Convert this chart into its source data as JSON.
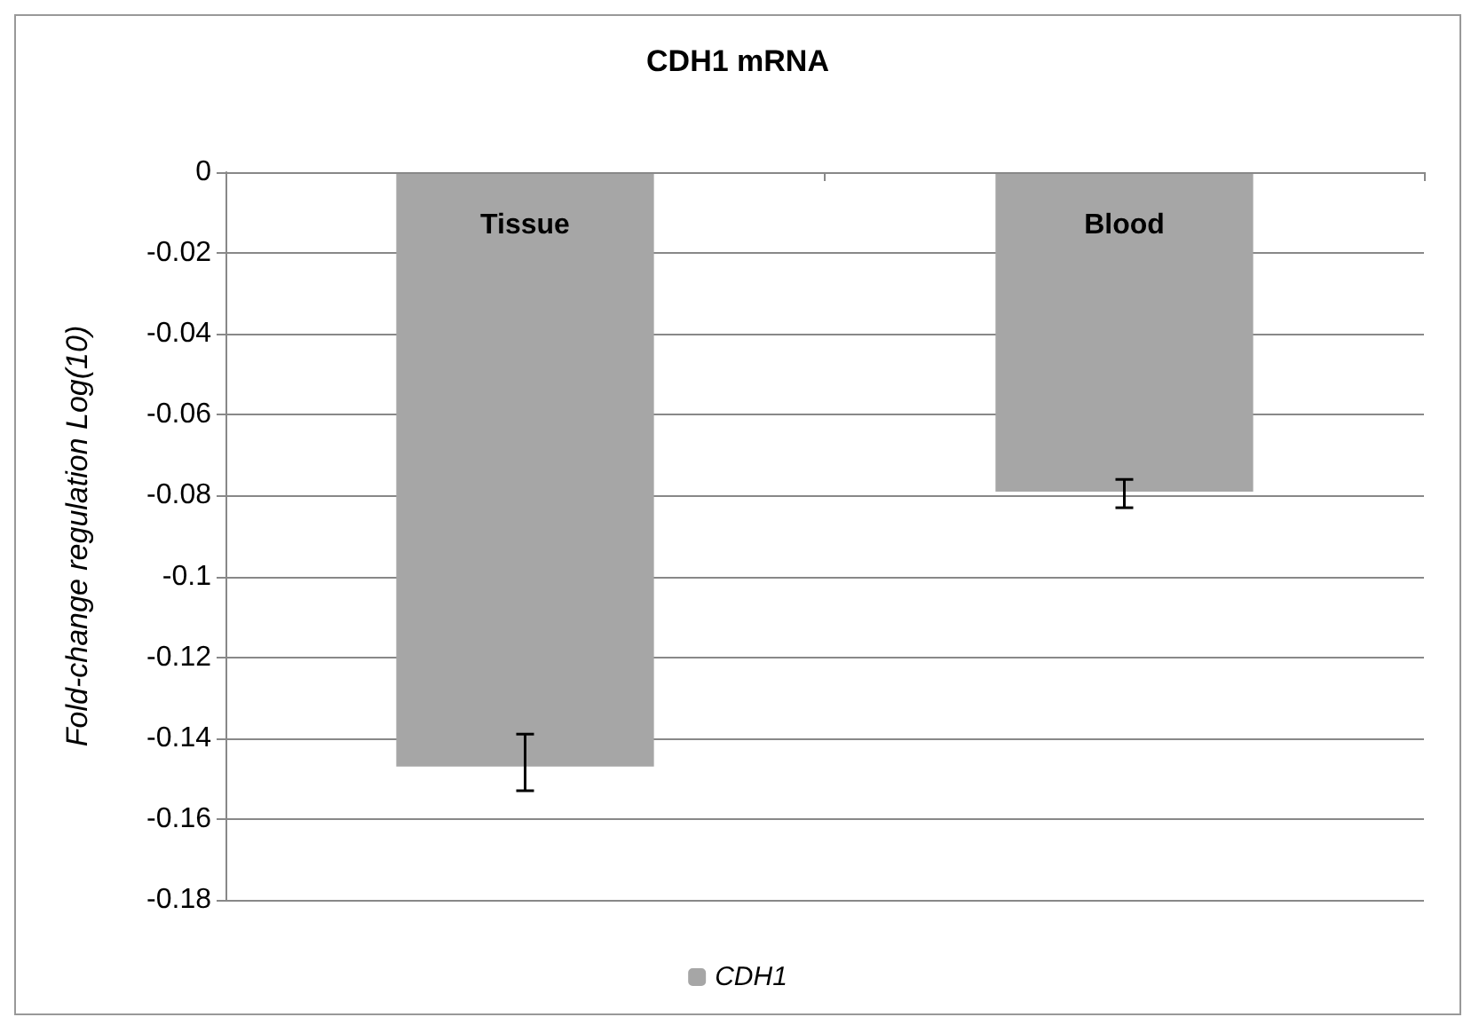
{
  "chart_data": {
    "type": "bar",
    "title": "CDH1 mRNA",
    "ylabel": "Fold-change regulation Log(10)",
    "categories": [
      "Tissue",
      "Blood"
    ],
    "series": [
      {
        "name": "CDH1",
        "color": "#a6a6a6",
        "values": [
          -0.147,
          -0.079
        ],
        "errors": [
          [
            -0.153,
            -0.139
          ],
          [
            -0.083,
            -0.076
          ]
        ]
      }
    ],
    "ylim": [
      -0.18,
      0
    ],
    "yticks": [
      0,
      -0.02,
      -0.04,
      -0.06,
      -0.08,
      -0.1,
      -0.12,
      -0.14,
      -0.16,
      -0.18
    ],
    "grid": "y",
    "legend": "bottom"
  }
}
